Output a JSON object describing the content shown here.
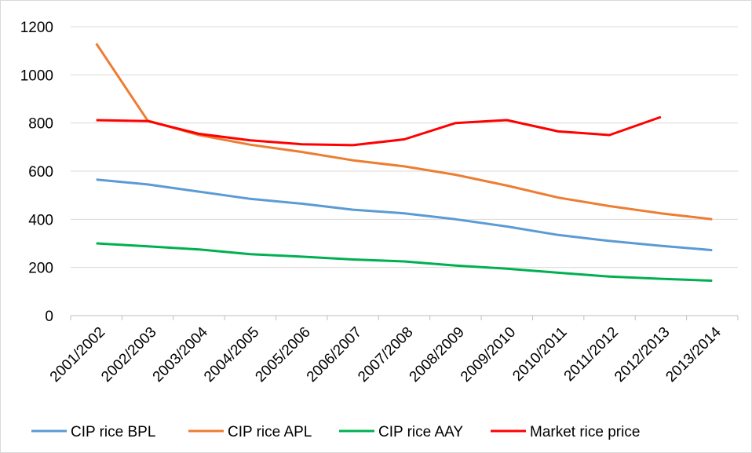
{
  "chart_data": {
    "type": "line",
    "categories": [
      "2001/2002",
      "2002/2003",
      "2003/2004",
      "2004/2005",
      "2005/2006",
      "2006/2007",
      "2007/2008",
      "2008/2009",
      "2009/2010",
      "2010/2011",
      "2011/2012",
      "2012/2013",
      "2013/2014"
    ],
    "series": [
      {
        "name": "CIP rice BPL",
        "color": "#5b9bd5",
        "values": [
          565,
          545,
          515,
          485,
          465,
          440,
          425,
          400,
          370,
          335,
          310,
          290,
          272
        ]
      },
      {
        "name": "CIP rice APL",
        "color": "#ed7d31",
        "values": [
          1130,
          810,
          750,
          710,
          680,
          645,
          620,
          585,
          540,
          490,
          455,
          425,
          400
        ]
      },
      {
        "name": "CIP rice AAY",
        "color": "#00b050",
        "values": [
          300,
          288,
          275,
          255,
          245,
          233,
          225,
          208,
          195,
          178,
          162,
          153,
          145
        ]
      },
      {
        "name": "Market rice price",
        "color": "#ff0000",
        "values": [
          812,
          808,
          755,
          728,
          712,
          708,
          732,
          800,
          812,
          765,
          750,
          825,
          null
        ]
      }
    ],
    "ylim": [
      0,
      1200
    ],
    "yticks": [
      0,
      200,
      400,
      600,
      800,
      1000,
      1200
    ],
    "grid": true,
    "legend": "bottom"
  }
}
